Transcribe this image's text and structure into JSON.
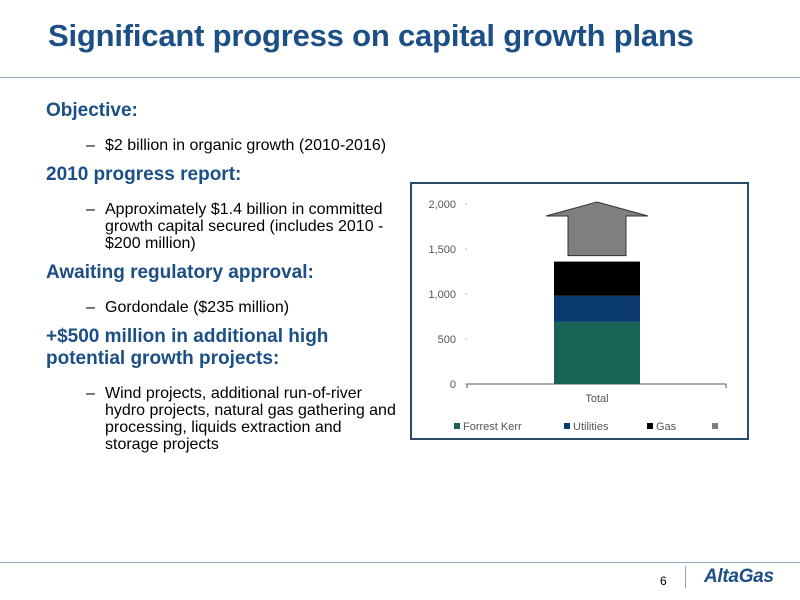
{
  "slide": {
    "title": "Significant progress on capital growth plans",
    "page_number": "6",
    "logo_text": "AltaGas"
  },
  "content": {
    "sections": [
      {
        "heading": "Objective:",
        "bullet": "$2 billion in organic growth (2010-2016)"
      },
      {
        "heading": "2010 progress report:",
        "bullet": "Approximately $1.4 billion in committed growth capital secured (includes 2010 - $200 million)"
      },
      {
        "heading": "Awaiting regulatory approval:",
        "bullet": "Gordondale ($235 million)"
      },
      {
        "heading": "+$500 million in additional high potential growth projects:",
        "bullet": "Wind projects, additional run-of-river hydro projects, natural gas gathering and processing, liquids extraction and storage projects"
      }
    ],
    "bullet_marker": "–"
  },
  "chart_data": {
    "type": "bar",
    "stacked": true,
    "categories": [
      "Total"
    ],
    "series": [
      {
        "name": "Forrest Kerr",
        "values": [
          690
        ],
        "color": "#176356"
      },
      {
        "name": "Utilities",
        "values": [
          290
        ],
        "color": "#0b3a6e"
      },
      {
        "name": "Gas",
        "values": [
          380
        ],
        "color": "#000000"
      },
      {
        "name": "",
        "values": [
          640
        ],
        "color": "#7f7f7f"
      }
    ],
    "y_ticks": [
      "0",
      "500",
      "1,000",
      "1,500",
      "2,000"
    ],
    "ylim": [
      0,
      2000
    ],
    "grid": false,
    "legend_position": "bottom",
    "arrow_series": "last",
    "title": "",
    "xlabel": "",
    "ylabel": ""
  }
}
